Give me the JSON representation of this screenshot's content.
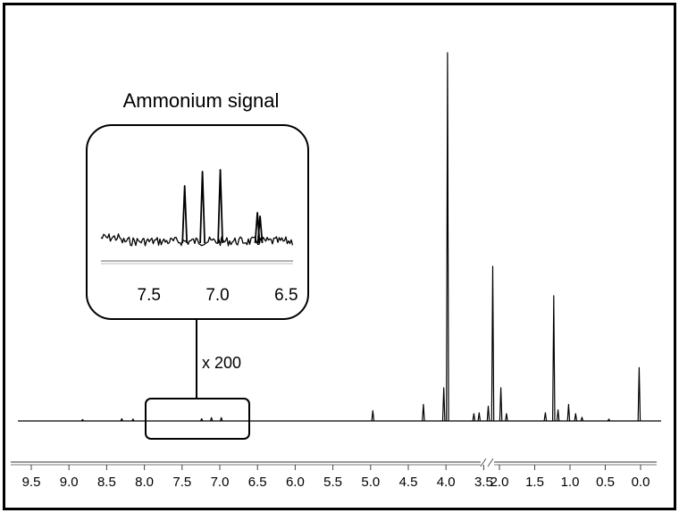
{
  "chart_data": {
    "type": "line",
    "title": "",
    "xlabel": "",
    "ylabel": "",
    "x_reversed": true,
    "x_axis_break": [
      2.2,
      2.0
    ],
    "xlim": [
      9.6,
      -0.2
    ],
    "x_ticks": [
      "9.5",
      "9.0",
      "8.5",
      "8.0",
      "7.5",
      "7.0",
      "6.5",
      "6.0",
      "5.5",
      "5.0",
      "4.5",
      "4.0",
      "3.5",
      "2.0",
      "1.5",
      "1.0",
      "0.5",
      "0.0"
    ],
    "grid": false,
    "legend": "none",
    "line_color": "#000000",
    "peaks": [
      {
        "ppm": 8.82,
        "height": 0.004
      },
      {
        "ppm": 8.3,
        "height": 0.006
      },
      {
        "ppm": 8.15,
        "height": 0.005
      },
      {
        "ppm": 7.24,
        "height": 0.006
      },
      {
        "ppm": 7.11,
        "height": 0.009
      },
      {
        "ppm": 6.98,
        "height": 0.009
      },
      {
        "ppm": 4.97,
        "height": 0.028
      },
      {
        "ppm": 4.3,
        "height": 0.045
      },
      {
        "ppm": 4.03,
        "height": 0.09
      },
      {
        "ppm": 3.98,
        "height": 1.0
      },
      {
        "ppm": 3.63,
        "height": 0.02
      },
      {
        "ppm": 3.56,
        "height": 0.022
      },
      {
        "ppm": 3.44,
        "height": 0.04
      },
      {
        "ppm": 3.38,
        "height": 0.42
      },
      {
        "ppm": 1.98,
        "height": 0.09
      },
      {
        "ppm": 1.9,
        "height": 0.02
      },
      {
        "ppm": 1.35,
        "height": 0.022
      },
      {
        "ppm": 1.23,
        "height": 0.34
      },
      {
        "ppm": 1.17,
        "height": 0.03
      },
      {
        "ppm": 1.02,
        "height": 0.045
      },
      {
        "ppm": 0.92,
        "height": 0.02
      },
      {
        "ppm": 0.83,
        "height": 0.01
      },
      {
        "ppm": 0.45,
        "height": 0.005
      },
      {
        "ppm": 0.02,
        "height": 0.145
      }
    ],
    "inset": {
      "title": "Ammonium signal",
      "magnification": "x 200",
      "xlim": [
        7.85,
        6.45
      ],
      "x_ticks": [
        "7.5",
        "7.0",
        "6.5"
      ],
      "peaks": [
        {
          "ppm": 7.24,
          "height": 0.62
        },
        {
          "ppm": 7.11,
          "height": 0.78
        },
        {
          "ppm": 6.98,
          "height": 0.8
        },
        {
          "ppm": 6.71,
          "height": 0.32
        },
        {
          "ppm": 6.69,
          "height": 0.28
        }
      ]
    }
  }
}
